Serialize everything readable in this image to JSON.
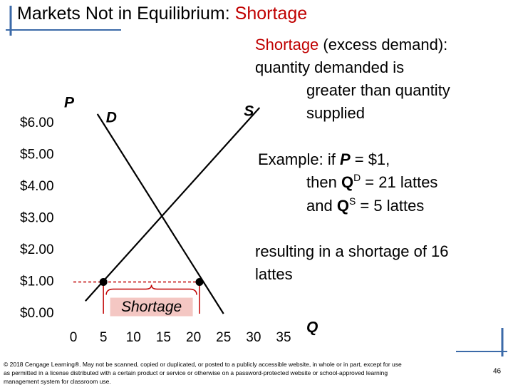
{
  "chart_data": {
    "type": "line",
    "title": "Markets Not in Equilibrium:",
    "title_highlight": "Shortage",
    "y_label": "P",
    "x_label": "Q",
    "xlim": [
      0,
      35
    ],
    "ylim": [
      0,
      6.5
    ],
    "xticks": [
      0,
      5,
      10,
      15,
      20,
      25,
      30,
      35
    ],
    "yticks": [
      {
        "value": 0,
        "label": "$0.00"
      },
      {
        "value": 1,
        "label": "$1.00"
      },
      {
        "value": 2,
        "label": "$2.00"
      },
      {
        "value": 3,
        "label": "$3.00"
      },
      {
        "value": 4,
        "label": "$4.00"
      },
      {
        "value": 5,
        "label": "$5.00"
      },
      {
        "value": 6,
        "label": "$6.00"
      }
    ],
    "series": [
      {
        "name": "D",
        "color": "#000000",
        "x": [
          4,
          25
        ],
        "values": [
          6.3,
          0
        ]
      },
      {
        "name": "S",
        "color": "#000000",
        "x": [
          2,
          31
        ],
        "values": [
          0.4,
          6.5
        ]
      }
    ],
    "markers": {
      "color": "#000000",
      "line_color": "#c00000",
      "x": [
        5,
        21
      ],
      "values": [
        1,
        1
      ]
    },
    "annotation": "Shortage"
  },
  "slide": {
    "definition": {
      "term": "Shortage",
      "rest": " (excess demand):",
      "lines": [
        "quantity demanded is",
        "greater than quantity",
        "supplied"
      ]
    },
    "example": [
      [
        "Example: if ",
        "P",
        "  =  $1,"
      ],
      [
        "then ",
        "Q",
        "D",
        "  = 21 lattes"
      ],
      [
        "and ",
        "Q",
        "S",
        "  = 5 lattes"
      ]
    ],
    "result": [
      "resulting in a shortage of 16",
      "lattes"
    ],
    "footer": [
      "© 2018 Cengage Learning®. May not be scanned, copied or duplicated, or posted to a publicly accessible website, in whole or in part, except for use",
      "as permitted in a license distributed with a certain product or service or otherwise on a password-protected website or school-approved learning",
      "management system for classroom use."
    ],
    "page_number": "46"
  }
}
